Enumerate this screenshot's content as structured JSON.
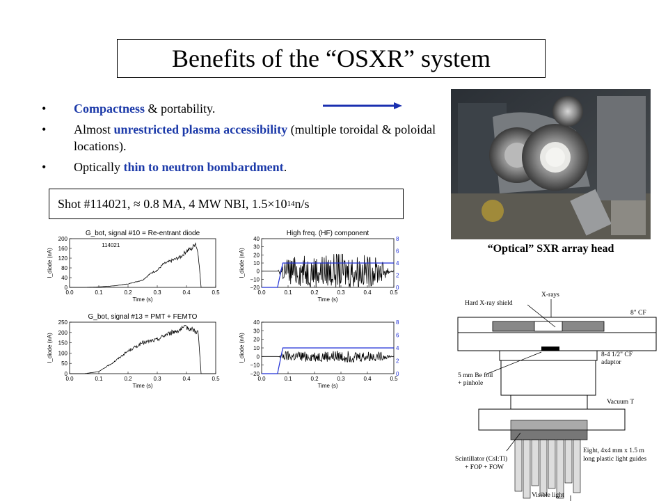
{
  "title": "Benefits of the “OSXR” system",
  "bullets": [
    {
      "symbol": "•",
      "pre": "",
      "highlight": "Compactness",
      "post": "  & portability."
    },
    {
      "symbol": "•",
      "pre": "Almost ",
      "highlight": "unrestricted plasma accessibility",
      "post": " (multiple toroidal & poloidal locations)."
    },
    {
      "symbol": "•",
      "pre": "Optically ",
      "highlight": "thin to neutron bombardment",
      "post": "."
    }
  ],
  "shot": {
    "text": "Shot #114021, ≈ 0.8 MA, 4 MW NBI, 1.5×10",
    "exp": "14",
    "unit": " n/s"
  },
  "photo_caption": "“Optical” SXR array head",
  "colors": {
    "highlight": "#1c3aa9",
    "arrow": "#1a2fb0",
    "blue_trace": "#1f2fd6"
  },
  "chart_data": [
    {
      "type": "line",
      "title": "G_bot, signal #10 = Re-entrant diode",
      "annotation": "114021",
      "xlabel": "Time (s)",
      "ylabel": "I_diode (nA)",
      "xlim": [
        0.0,
        0.5
      ],
      "ylim": [
        0,
        200
      ],
      "xticks": [
        "0.0",
        "0.1",
        "0.2",
        "0.3",
        "0.4",
        "0.5"
      ],
      "yticks": [
        "0",
        "40",
        "80",
        "120",
        "160",
        "200"
      ],
      "series": [
        {
          "x": [
            0.0,
            0.05,
            0.1,
            0.15,
            0.2,
            0.25,
            0.28,
            0.3,
            0.32,
            0.35,
            0.38,
            0.4,
            0.42,
            0.43,
            0.44,
            0.45,
            0.5
          ],
          "y": [
            0,
            0,
            2,
            6,
            14,
            30,
            60,
            70,
            95,
            110,
            125,
            150,
            160,
            185,
            140,
            0,
            0
          ]
        }
      ]
    },
    {
      "type": "line",
      "title": "High freq. (HF) component",
      "xlabel": "Time (s)",
      "ylabel": "I_diode (nA)",
      "xlim": [
        0.0,
        0.5
      ],
      "ylim": [
        -20,
        40
      ],
      "xticks": [
        "0.0",
        "0.1",
        "0.2",
        "0.3",
        "0.4",
        "0.5"
      ],
      "yticks": [
        "−20",
        "−10",
        "0",
        "10",
        "20",
        "30",
        "40"
      ],
      "right_yticks": [
        "0",
        "2",
        "4",
        "6",
        "8"
      ],
      "series": [
        {
          "x": [
            0.0,
            0.06,
            0.09,
            0.2,
            0.3,
            0.4,
            0.45,
            0.5
          ],
          "y": [
            0,
            0,
            18,
            20,
            22,
            20,
            15,
            0
          ]
        },
        {
          "x": [
            0.0,
            0.06,
            0.07,
            0.08,
            0.5
          ],
          "y": [
            0,
            0,
            2,
            4,
            4
          ]
        }
      ]
    },
    {
      "type": "line",
      "title": "G_bot, signal #13 = PMT + FEMTO",
      "xlabel": "Time (s)",
      "ylabel": "I_diode (nA)",
      "xlim": [
        0.0,
        0.5
      ],
      "ylim": [
        0,
        250
      ],
      "xticks": [
        "0.0",
        "0.1",
        "0.2",
        "0.3",
        "0.4",
        "0.5"
      ],
      "yticks": [
        "0",
        "50",
        "100",
        "150",
        "200",
        "250"
      ],
      "series": [
        {
          "x": [
            0.0,
            0.05,
            0.1,
            0.15,
            0.2,
            0.22,
            0.25,
            0.3,
            0.33,
            0.35,
            0.38,
            0.4,
            0.42,
            0.44,
            0.45,
            0.5
          ],
          "y": [
            0,
            0,
            10,
            55,
            110,
            125,
            150,
            165,
            190,
            200,
            215,
            225,
            215,
            200,
            0,
            0
          ]
        }
      ]
    },
    {
      "type": "line",
      "xlabel": "Time (s)",
      "ylabel": "I_diode (nA)",
      "xlim": [
        0.0,
        0.5
      ],
      "ylim": [
        -20,
        40
      ],
      "xticks": [
        "0.0",
        "0.1",
        "0.2",
        "0.3",
        "0.4",
        "0.5"
      ],
      "yticks": [
        "−20",
        "−10",
        "0",
        "10",
        "20",
        "30",
        "40"
      ],
      "right_yticks": [
        "0",
        "2",
        "4",
        "6",
        "8"
      ],
      "series": [
        {
          "x": [
            0.0,
            0.06,
            0.09,
            0.2,
            0.3,
            0.4,
            0.45,
            0.5
          ],
          "y": [
            0,
            0,
            6,
            6,
            7,
            6,
            5,
            0
          ]
        },
        {
          "x": [
            0.0,
            0.06,
            0.07,
            0.08,
            0.5
          ],
          "y": [
            0,
            0,
            2,
            4,
            4
          ]
        }
      ]
    }
  ],
  "diagram_labels": {
    "xrays": "X-rays",
    "shield": "Hard X-ray shield",
    "cf8": "8\" CF",
    "adaptor1": "8-4 1/2\" CF",
    "adaptor2": "adaptor",
    "foil1": "5 mm Be foil",
    "foil2": "+ pinhole",
    "vacuum": "Vacuum T",
    "scint1": "Scintillator (CsI:Tl)",
    "scint2": "+ FOP + FOW",
    "guides1": "Eight, 4x4 mm x 1.5 m",
    "guides2": "long plastic light guides",
    "visible": "Visible light"
  }
}
